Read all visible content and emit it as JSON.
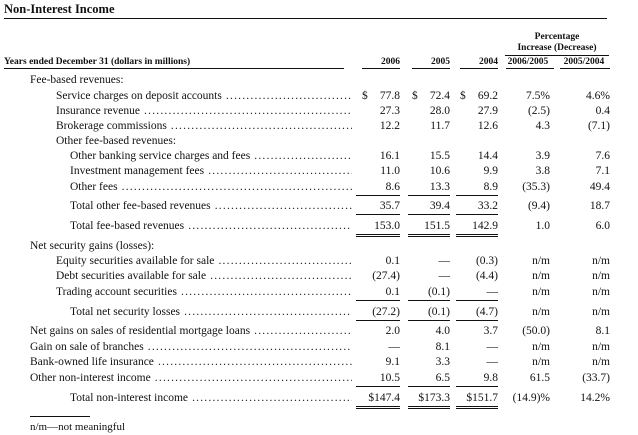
{
  "title": "Non-Interest Income",
  "header": {
    "row_label": "Years ended December 31 (dollars in millions)",
    "col_2006": "2006",
    "col_2005": "2005",
    "col_2004": "2004",
    "pct_group_line1": "Percentage",
    "pct_group_line2": "Increase (Decrease)",
    "col_pct1": "2006/2005",
    "col_pct2": "2005/2004"
  },
  "rows": [
    {
      "label": "Fee-based revenues:",
      "dots": false
    },
    {
      "label": "Service charges on deposit accounts",
      "dots": true,
      "v2006": "77.8",
      "v2005": "72.4",
      "v2004": "69.2",
      "p1": "7.5%",
      "p2": "4.6%",
      "dollar": "$"
    },
    {
      "label": "Insurance revenue",
      "dots": true,
      "v2006": "27.3",
      "v2005": "28.0",
      "v2004": "27.9",
      "p1": "(2.5)",
      "p2": "0.4"
    },
    {
      "label": "Brokerage commissions",
      "dots": true,
      "v2006": "12.2",
      "v2005": "11.7",
      "v2004": "12.6",
      "p1": "4.3",
      "p2": "(7.1)"
    },
    {
      "label": "Other fee-based revenues:",
      "dots": false
    },
    {
      "label": "Other banking service charges and fees",
      "dots": true,
      "v2006": "16.1",
      "v2005": "15.5",
      "v2004": "14.4",
      "p1": "3.9",
      "p2": "7.6"
    },
    {
      "label": "Investment management fees",
      "dots": true,
      "v2006": "11.0",
      "v2005": "10.6",
      "v2004": "9.9",
      "p1": "3.8",
      "p2": "7.1"
    },
    {
      "label": "Other fees",
      "dots": true,
      "v2006": "8.6",
      "v2005": "13.3",
      "v2004": "8.9",
      "p1": "(35.3)",
      "p2": "49.4"
    },
    {
      "label": "Total other fee-based revenues",
      "dots": true,
      "v2006": "35.7",
      "v2005": "39.4",
      "v2004": "33.2",
      "p1": "(9.4)",
      "p2": "18.7"
    },
    {
      "label": "Total fee-based revenues",
      "dots": true,
      "v2006": "153.0",
      "v2005": "151.5",
      "v2004": "142.9",
      "p1": "1.0",
      "p2": "6.0"
    },
    {
      "label": "Net security gains (losses):",
      "dots": false
    },
    {
      "label": "Equity securities available for sale",
      "dots": true,
      "v2006": "0.1",
      "v2005": "—",
      "v2004": "(0.3)",
      "p1": "n/m",
      "p2": "n/m"
    },
    {
      "label": "Debt securities available for sale",
      "dots": true,
      "v2006": "(27.4)",
      "v2005": "—",
      "v2004": "(4.4)",
      "p1": "n/m",
      "p2": "n/m"
    },
    {
      "label": "Trading account securities",
      "dots": true,
      "v2006": "0.1",
      "v2005": "(0.1)",
      "v2004": "—",
      "p1": "n/m",
      "p2": "n/m"
    },
    {
      "label": "Total net security losses",
      "dots": true,
      "v2006": "(27.2)",
      "v2005": "(0.1)",
      "v2004": "(4.7)",
      "p1": "n/m",
      "p2": "n/m"
    },
    {
      "label": "Net gains on sales of residential mortgage loans",
      "dots": true,
      "v2006": "2.0",
      "v2005": "4.0",
      "v2004": "3.7",
      "p1": "(50.0)",
      "p2": "8.1"
    },
    {
      "label": "Gain on sale of branches",
      "dots": true,
      "v2006": "—",
      "v2005": "8.1",
      "v2004": "—",
      "p1": "n/m",
      "p2": "n/m"
    },
    {
      "label": "Bank-owned life insurance",
      "dots": true,
      "v2006": "9.1",
      "v2005": "3.3",
      "v2004": "—",
      "p1": "n/m",
      "p2": "n/m"
    },
    {
      "label": "Other non-interest income",
      "dots": true,
      "v2006": "10.5",
      "v2005": "6.5",
      "v2004": "9.8",
      "p1": "61.5",
      "p2": "(33.7)"
    },
    {
      "label": "Total non-interest income",
      "dots": true,
      "v2006": "$147.4",
      "v2005": "$173.3",
      "v2004": "$151.7",
      "p1": "(14.9)%",
      "p2": "14.2%"
    }
  ],
  "footnote": "n/m—not meaningful"
}
